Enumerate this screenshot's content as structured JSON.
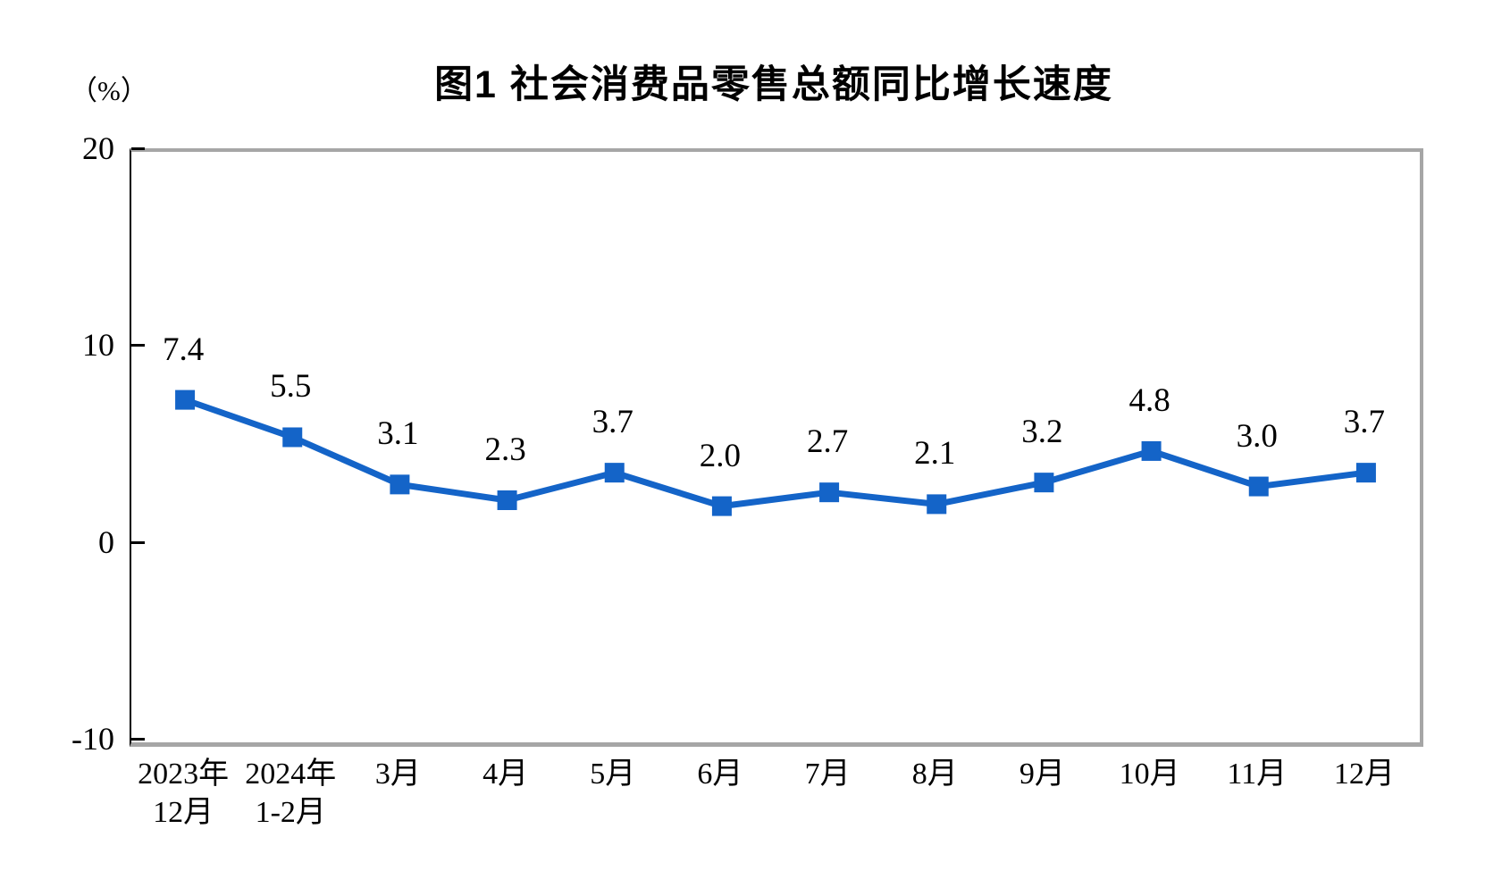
{
  "chart": {
    "title": "图1  社会消费品零售总额同比增长速度",
    "unit_label": "（%）"
  },
  "chart_data": {
    "type": "line",
    "title": "图1  社会消费品零售总额同比增长速度",
    "subtitle": "",
    "xlabel": "",
    "ylabel": "（%）",
    "categories": [
      "2023年\n12月",
      "2024年\n1-2月",
      "3月",
      "4月",
      "5月",
      "6月",
      "7月",
      "8月",
      "9月",
      "10月",
      "11月",
      "12月"
    ],
    "values": [
      7.4,
      5.5,
      3.1,
      2.3,
      3.7,
      2.0,
      2.7,
      2.1,
      3.2,
      4.8,
      3.0,
      3.7
    ],
    "data_labels": [
      "7.4",
      "5.5",
      "3.1",
      "2.3",
      "3.7",
      "2.0",
      "2.7",
      "2.1",
      "3.2",
      "4.8",
      "3.0",
      "3.7"
    ],
    "ylim": [
      -10,
      20
    ],
    "yticks": [
      20,
      10,
      0,
      -10
    ],
    "ytick_labels": [
      "20",
      "10",
      "0",
      "-10"
    ],
    "grid": false,
    "legend_position": "none",
    "line_color": "#1464c8",
    "marker": "square",
    "plot_border_color": "#a6a6a6",
    "axis_color": "#000000"
  }
}
